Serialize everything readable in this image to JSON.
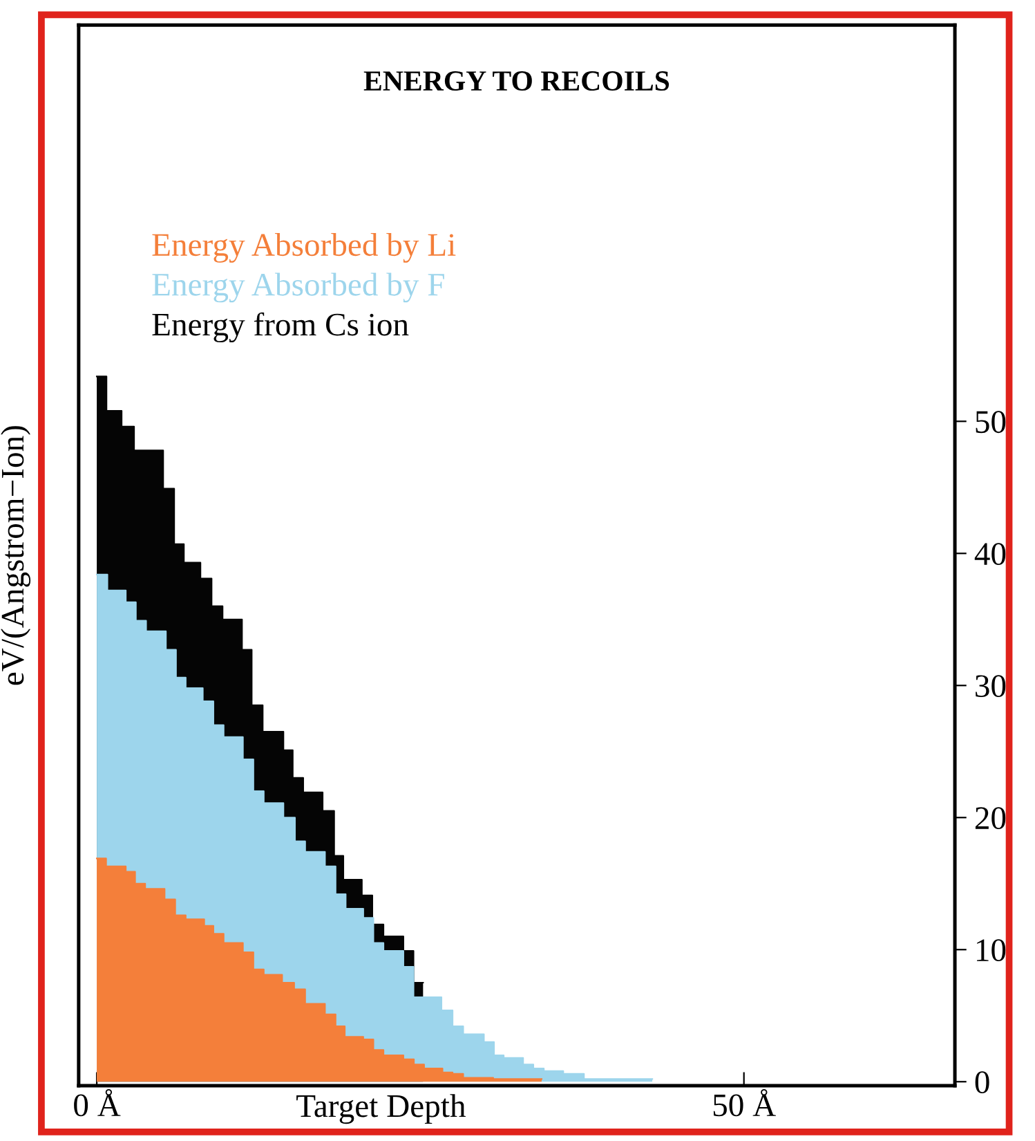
{
  "chart_data": {
    "type": "area",
    "title": "ENERGY TO RECOILS",
    "xlabel": "Target Depth",
    "ylabel": "eV/(Angstrom−Ion)",
    "xlim": [
      -1.4,
      66.3
    ],
    "ylim": [
      -0.3,
      80
    ],
    "xticks": [
      {
        "value": 0,
        "label": "0 Å"
      },
      {
        "value": 50,
        "label": "50 Å"
      }
    ],
    "yticks": [
      0,
      10,
      20,
      30,
      40,
      50
    ],
    "grid": false,
    "series": [
      {
        "name": "Energy Absorbed by Li",
        "color": "#f47f3a",
        "x": [
          0,
          0.72,
          0.72,
          2.24,
          2.24,
          2.96,
          2.96,
          3.74,
          3.74,
          5.24,
          5.24,
          6.06,
          6.06,
          6.87,
          6.87,
          8.3,
          8.3,
          9.01,
          9.01,
          9.8,
          9.8,
          11.29,
          11.29,
          12.1,
          12.1,
          12.9,
          12.9,
          14.32,
          14.32,
          15.25,
          15.25,
          16.1,
          16.1,
          17.63,
          17.63,
          18.45,
          18.45,
          19.16,
          19.16,
          20.59,
          20.59,
          21.37,
          21.37,
          22.15,
          22.15,
          23.69,
          23.69,
          24.5,
          24.5,
          25.29,
          25.29,
          26.71,
          26.71,
          27.49,
          27.49,
          28.31,
          28.31,
          30.63,
          30.63,
          34.37
        ],
        "values": [
          16.9,
          16.9,
          16.3,
          16.3,
          15.9,
          15.9,
          15.0,
          15.0,
          14.6,
          14.6,
          13.8,
          13.8,
          12.6,
          12.6,
          12.3,
          12.3,
          11.8,
          11.8,
          11.2,
          11.2,
          10.5,
          10.5,
          9.8,
          9.8,
          8.5,
          8.5,
          8.1,
          8.1,
          7.5,
          7.5,
          7.0,
          7.0,
          5.9,
          5.9,
          5.1,
          5.1,
          4.2,
          4.2,
          3.4,
          3.4,
          3.2,
          3.2,
          2.4,
          2.4,
          2.0,
          2.0,
          1.7,
          1.7,
          1.3,
          1.3,
          1.0,
          1.0,
          0.7,
          0.7,
          0.6,
          0.6,
          0.3,
          0.3,
          0.2,
          0.2
        ]
      },
      {
        "name": "Energy Absorbed by F",
        "color": "#9dd5ec",
        "x": [
          0,
          0.82,
          0.82,
          2.24,
          2.24,
          3.02,
          3.02,
          3.81,
          3.81,
          5.34,
          5.34,
          6.12,
          6.12,
          6.87,
          6.87,
          8.19,
          8.19,
          9.01,
          9.01,
          9.8,
          9.8,
          11.29,
          11.29,
          12.1,
          12.1,
          12.9,
          12.9,
          14.42,
          14.42,
          15.31,
          15.31,
          16.1,
          16.1,
          17.63,
          17.63,
          18.45,
          18.45,
          19.23,
          19.23,
          20.59,
          20.59,
          21.37,
          21.37,
          22.15,
          22.15,
          23.69,
          23.69,
          24.47,
          24.47,
          26.63,
          26.63,
          27.49,
          27.49,
          28.31,
          28.31,
          29.91,
          29.91,
          30.69,
          30.69,
          31.44,
          31.44,
          32.94,
          32.94,
          33.73,
          33.73,
          34.54,
          34.54,
          36.04,
          36.04,
          37.64,
          37.64,
          42.92
        ],
        "values": [
          38.4,
          38.4,
          37.2,
          37.2,
          36.3,
          36.3,
          34.9,
          34.9,
          34.1,
          34.1,
          32.7,
          32.7,
          30.6,
          30.6,
          29.8,
          29.8,
          28.8,
          28.8,
          27.0,
          27.0,
          26.1,
          26.1,
          24.4,
          24.4,
          22.0,
          22.0,
          21.1,
          21.1,
          20.0,
          20.0,
          18.2,
          18.2,
          17.4,
          17.4,
          16.3,
          16.3,
          14.2,
          14.2,
          13.1,
          13.1,
          12.4,
          12.4,
          10.5,
          10.5,
          9.9,
          9.9,
          8.7,
          8.7,
          6.4,
          6.4,
          5.4,
          5.4,
          4.2,
          4.2,
          3.6,
          3.6,
          3.0,
          3.0,
          2.0,
          2.0,
          1.8,
          1.8,
          1.3,
          1.3,
          1.0,
          1.0,
          0.8,
          0.8,
          0.6,
          0.6,
          0.2,
          0.2
        ]
      },
      {
        "name": "Energy from Cs ion",
        "color": "#050505",
        "x": [
          0,
          0.75,
          0.75,
          1.92,
          1.92,
          2.88,
          2.88,
          5.13,
          5.13,
          5.98,
          5.98,
          6.73,
          6.73,
          8.01,
          8.01,
          8.87,
          8.87,
          9.72,
          9.72,
          11.22,
          11.22,
          11.97,
          11.97,
          12.82,
          12.82,
          14.42,
          14.42,
          15.14,
          15.14,
          15.95,
          15.95,
          17.45,
          17.45,
          18.34,
          18.34,
          19.05,
          19.05,
          20.48,
          20.48,
          21.29,
          21.29,
          22.15,
          22.15,
          23.69,
          23.69,
          24.47,
          24.47,
          25.21
        ],
        "values": [
          53.4,
          53.4,
          50.8,
          50.8,
          49.6,
          49.6,
          47.8,
          47.8,
          44.9,
          44.9,
          40.7,
          40.7,
          39.3,
          39.3,
          38.1,
          38.1,
          36.0,
          36.0,
          35.0,
          35.0,
          32.7,
          32.7,
          28.5,
          28.5,
          26.5,
          26.5,
          25.1,
          25.1,
          23.0,
          23.0,
          21.9,
          21.9,
          20.5,
          20.5,
          17.1,
          17.1,
          15.3,
          15.3,
          14.1,
          14.1,
          11.9,
          11.9,
          11.0,
          11.0,
          9.9,
          9.9,
          7.5,
          7.5
        ]
      }
    ]
  }
}
